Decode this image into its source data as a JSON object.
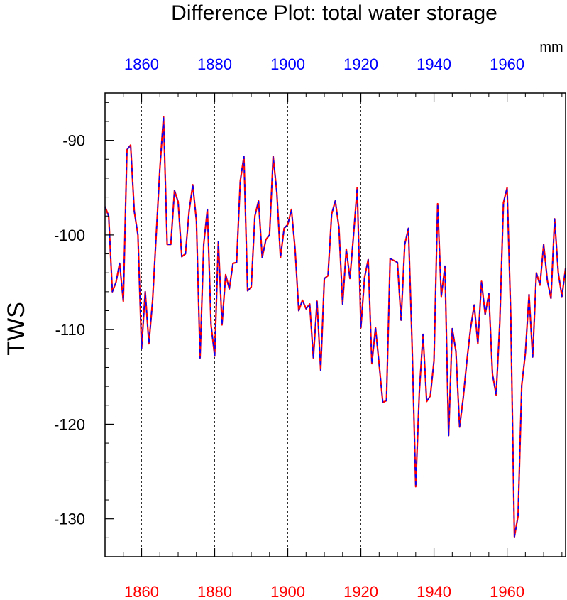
{
  "chart_data": {
    "type": "line",
    "title": "Difference Plot: total water storage",
    "ylabel": "TWS",
    "units": "mm",
    "xlim": [
      1850,
      1976
    ],
    "ylim": [
      -134,
      -85
    ],
    "x_ticks": [
      "1860",
      "1880",
      "1900",
      "1920",
      "1940",
      "1960"
    ],
    "y_ticks": [
      "-90",
      "-100",
      "-110",
      "-120",
      "-130"
    ],
    "top_axis_color": "#0000ff",
    "bottom_axis_color": "#ff0000",
    "grid": "vertical dashed at major x ticks",
    "series": [
      {
        "colors": [
          "#ff0000",
          "#0000ff"
        ],
        "x": [
          1850,
          1851,
          1852,
          1853,
          1854,
          1855,
          1856,
          1857,
          1858,
          1859,
          1860,
          1861,
          1862,
          1863,
          1864,
          1865,
          1866,
          1867,
          1868,
          1869,
          1870,
          1871,
          1872,
          1873,
          1874,
          1875,
          1876,
          1877,
          1878,
          1879,
          1880,
          1881,
          1882,
          1883,
          1884,
          1885,
          1886,
          1887,
          1888,
          1889,
          1890,
          1891,
          1892,
          1893,
          1894,
          1895,
          1896,
          1897,
          1898,
          1899,
          1900,
          1901,
          1902,
          1903,
          1904,
          1905,
          1906,
          1907,
          1908,
          1909,
          1910,
          1911,
          1912,
          1913,
          1914,
          1915,
          1916,
          1917,
          1918,
          1919,
          1920,
          1921,
          1922,
          1923,
          1924,
          1925,
          1926,
          1927,
          1928,
          1929,
          1930,
          1931,
          1932,
          1933,
          1934,
          1935,
          1936,
          1937,
          1938,
          1939,
          1940,
          1941,
          1942,
          1943,
          1944,
          1945,
          1946,
          1947,
          1948,
          1949,
          1950,
          1951,
          1952,
          1953,
          1954,
          1955,
          1956,
          1957,
          1958,
          1959,
          1960,
          1961,
          1962,
          1963,
          1964,
          1965,
          1966,
          1967,
          1968,
          1969,
          1970,
          1971,
          1972,
          1973,
          1974,
          1975,
          1976
        ],
        "y": [
          -97,
          -98,
          -106,
          -105,
          -103,
          -107,
          -91,
          -90.5,
          -97.5,
          -100,
          -112,
          -106,
          -111.5,
          -107,
          -100,
          -93,
          -87.5,
          -101,
          -101,
          -95.3,
          -96.5,
          -102.3,
          -102,
          -97.5,
          -94.7,
          -98.5,
          -113,
          -101,
          -97.3,
          -109.5,
          -112.8,
          -100.7,
          -109.5,
          -104.2,
          -105.7,
          -103,
          -102.9,
          -94.3,
          -91.7,
          -105.9,
          -105.5,
          -98,
          -96.4,
          -102.4,
          -100.5,
          -100,
          -91.7,
          -95.5,
          -102.4,
          -99.3,
          -98.9,
          -97.3,
          -101.5,
          -108,
          -106.9,
          -107.8,
          -107.3,
          -113,
          -107,
          -114.3,
          -104.6,
          -104.3,
          -97.8,
          -96.4,
          -99.2,
          -107.3,
          -101.5,
          -104.6,
          -100,
          -95,
          -109.8,
          -104.5,
          -102.6,
          -113.6,
          -109.8,
          -113.7,
          -117.7,
          -117.5,
          -102.5,
          -102.7,
          -102.9,
          -109,
          -101,
          -99.3,
          -111.5,
          -126.6,
          -116.5,
          -110.5,
          -117.6,
          -117,
          -113.3,
          -96.7,
          -106.5,
          -103.3,
          -121.2,
          -109.9,
          -112.3,
          -120.3,
          -117.2,
          -113.3,
          -109.9,
          -107.4,
          -111.5,
          -104.9,
          -108.4,
          -106.2,
          -114.7,
          -116.9,
          -109.3,
          -96.6,
          -95,
          -108.5,
          -131.9,
          -129.7,
          -115.9,
          -112.5,
          -106.3,
          -112.9,
          -104,
          -105.3,
          -101,
          -104.8,
          -106.7,
          -98.3,
          -104,
          -106.5,
          -103.5
        ]
      }
    ]
  }
}
